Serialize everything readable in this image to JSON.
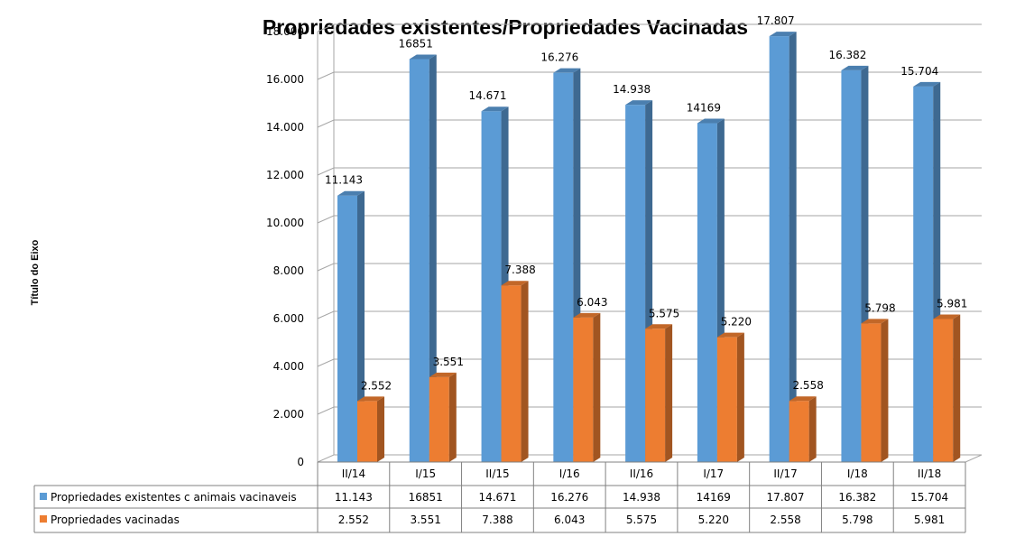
{
  "chart_data": {
    "type": "bar",
    "title": "Propriedades existentes/Propriedades Vacinadas",
    "ylabel": "Título do Eixo",
    "xlabel": "",
    "ylim": [
      0,
      18000
    ],
    "y_ticks": [
      "0",
      "2.000",
      "4.000",
      "6.000",
      "8.000",
      "10.000",
      "12.000",
      "14.000",
      "16.000",
      "18.000"
    ],
    "categories": [
      "II/14",
      "I/15",
      "II/15",
      "I/16",
      "II/16",
      "I/17",
      "II/17",
      "I/18",
      "II/18"
    ],
    "grid": true,
    "legend": "data-table",
    "series": [
      {
        "name": "Propriedades existentes c animais vacinaveis",
        "color": "#5B9BD5",
        "values": [
          11143,
          16851,
          14671,
          16276,
          14938,
          14169,
          17807,
          16382,
          15704
        ],
        "labels": [
          "11.143",
          "16851",
          "14.671",
          "16.276",
          "14.938",
          "14169",
          "17.807",
          "16.382",
          "15.704"
        ]
      },
      {
        "name": "Propriedades vacinadas",
        "color": "#ED7D31",
        "values": [
          2552,
          3551,
          7388,
          6043,
          5575,
          5220,
          2558,
          5798,
          5981
        ],
        "labels": [
          "2.552",
          "3.551",
          "7.388",
          "6.043",
          "5.575",
          "5.220",
          "2.558",
          "5.798",
          "5.981"
        ]
      }
    ]
  }
}
